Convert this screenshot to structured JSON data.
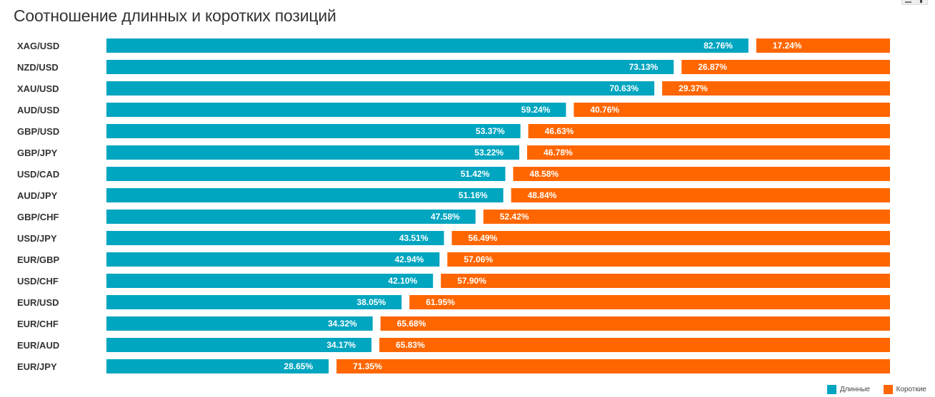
{
  "chart_data": {
    "type": "bar",
    "orientation": "horizontal",
    "stacked": true,
    "stack_mode": "percent",
    "title": "Соотношение длинных и коротких позиций",
    "xlabel": "",
    "ylabel": "",
    "xlim": [
      0,
      100
    ],
    "grid": false,
    "legend_position": "bottom-right",
    "categories": [
      "XAG/USD",
      "NZD/USD",
      "XAU/USD",
      "AUD/USD",
      "GBP/USD",
      "GBP/JPY",
      "USD/CAD",
      "AUD/JPY",
      "GBP/CHF",
      "USD/JPY",
      "EUR/GBP",
      "USD/CHF",
      "EUR/USD",
      "EUR/CHF",
      "EUR/AUD",
      "EUR/JPY"
    ],
    "series": [
      {
        "name": "Длинные",
        "color": "#00a5c0",
        "values": [
          82.76,
          73.13,
          70.63,
          59.24,
          53.37,
          53.22,
          51.42,
          51.16,
          47.58,
          43.51,
          42.94,
          42.1,
          38.05,
          34.32,
          34.17,
          28.65
        ],
        "labels": [
          "82.76%",
          "73.13%",
          "70.63%",
          "59.24%",
          "53.37%",
          "53.22%",
          "51.42%",
          "51.16%",
          "47.58%",
          "43.51%",
          "42.94%",
          "42.10%",
          "38.05%",
          "34.32%",
          "34.17%",
          "28.65%"
        ]
      },
      {
        "name": "Короткие",
        "color": "#ff6600",
        "values": [
          17.24,
          26.87,
          29.37,
          40.76,
          46.63,
          46.78,
          48.58,
          48.84,
          52.42,
          56.49,
          57.06,
          57.9,
          61.95,
          65.68,
          65.83,
          71.35
        ],
        "labels": [
          "17.24%",
          "26.87%",
          "29.37%",
          "40.76%",
          "46.63%",
          "46.78%",
          "48.58%",
          "48.84%",
          "52.42%",
          "56.49%",
          "57.06%",
          "57.90%",
          "61.95%",
          "65.68%",
          "65.83%",
          "71.35%"
        ]
      }
    ]
  }
}
